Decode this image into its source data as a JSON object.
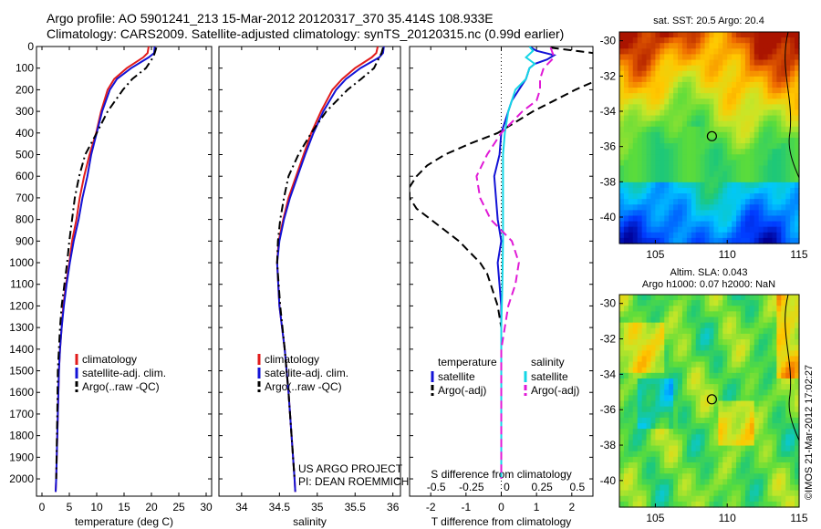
{
  "header": {
    "line1": "Argo profile: AO 5901241_213 15-Mar-2012 20120317_370 35.414S 108.933E",
    "line2": "Climatology: CARS2009. Satellite-adjusted climatology: synTS_20120315.nc (0.99d earlier)"
  },
  "colors": {
    "climatology": "#e11b1b",
    "satellite": "#1313d6",
    "argo": "#000000",
    "salinity_sat": "#14d6e6",
    "salinity_argo": "#e01ad6"
  },
  "chart_data": [
    {
      "type": "line",
      "id": "temperature",
      "xlabel": "temperature (deg C)",
      "ylabel": "",
      "xlim": [
        -1,
        31
      ],
      "ylim": [
        2080,
        0
      ],
      "xticks": [
        0,
        5,
        10,
        15,
        20,
        25,
        30
      ],
      "yticks": [
        0,
        100,
        200,
        300,
        400,
        500,
        600,
        700,
        800,
        900,
        1000,
        1100,
        1200,
        1300,
        1400,
        1500,
        1600,
        1700,
        1800,
        1900,
        2000
      ],
      "legend": [
        "climatology",
        "satellite-adj. clim.",
        "Argo(..raw -QC)"
      ],
      "legend_position": "lower-center",
      "series": [
        {
          "name": "climatology",
          "style": "solid",
          "depth": [
            0,
            30,
            50,
            100,
            150,
            200,
            300,
            400,
            500,
            600,
            700,
            800,
            900,
            1000,
            1100,
            1200,
            1300,
            1400,
            1500,
            1700,
            2000,
            2060
          ],
          "values": [
            19.5,
            19.3,
            18.5,
            15.5,
            13.2,
            12.0,
            10.8,
            9.9,
            8.7,
            7.7,
            6.9,
            6.3,
            5.5,
            5.0,
            4.4,
            3.9,
            3.6,
            3.3,
            3.1,
            2.9,
            2.6,
            2.5
          ]
        },
        {
          "name": "satellite-adj. clim.",
          "style": "solid",
          "depth": [
            0,
            30,
            50,
            100,
            150,
            200,
            300,
            400,
            500,
            600,
            700,
            800,
            900,
            1000,
            1100,
            1200,
            1300,
            1400,
            1500,
            1700,
            2000,
            2060
          ],
          "values": [
            20.6,
            20.5,
            19.5,
            16.3,
            13.7,
            12.4,
            11.0,
            10.0,
            9.0,
            8.3,
            7.4,
            6.7,
            5.8,
            5.1,
            4.5,
            4.0,
            3.6,
            3.3,
            3.1,
            2.9,
            2.6,
            2.5
          ]
        },
        {
          "name": "Argo(..raw -QC)",
          "style": "dashdot",
          "depth": [
            5,
            30,
            50,
            100,
            150,
            200,
            300,
            400,
            500,
            600,
            700,
            800,
            900,
            1000,
            1100,
            1200,
            1300,
            1400,
            1500,
            1700,
            2000
          ],
          "values": [
            20.9,
            20.6,
            20.3,
            19.0,
            16.5,
            14.8,
            12.0,
            10.0,
            7.9,
            6.8,
            6.0,
            5.5,
            5.0,
            4.6,
            4.1,
            3.6,
            3.3,
            3.1,
            2.9,
            2.8,
            2.6
          ]
        }
      ]
    },
    {
      "type": "line",
      "id": "salinity",
      "xlabel": "salinity",
      "ylabel": "",
      "xlim": [
        33.7,
        36.1
      ],
      "ylim": [
        2080,
        0
      ],
      "xticks": [
        34,
        34.5,
        35,
        35.5,
        36
      ],
      "legend": [
        "climatology",
        "satellite-adj. clim.",
        "Argo(..raw -QC)"
      ],
      "legend_position": "lower-center",
      "annotations": [
        "US ARGO PROJECT",
        "PI: DEAN ROEMMICH"
      ],
      "series": [
        {
          "name": "climatology",
          "style": "solid",
          "depth": [
            0,
            30,
            50,
            100,
            150,
            200,
            300,
            400,
            500,
            600,
            700,
            800,
            900,
            1000,
            1200,
            1400,
            1600,
            1800,
            2000,
            2060
          ],
          "values": [
            35.8,
            35.78,
            35.72,
            35.5,
            35.33,
            35.2,
            35.05,
            34.92,
            34.82,
            34.72,
            34.62,
            34.55,
            34.49,
            34.47,
            34.5,
            34.57,
            34.62,
            34.66,
            34.7,
            34.71
          ]
        },
        {
          "name": "satellite-adj. clim.",
          "style": "solid",
          "depth": [
            0,
            30,
            50,
            100,
            150,
            200,
            300,
            400,
            500,
            600,
            700,
            800,
            900,
            1000,
            1200,
            1400,
            1600,
            1800,
            2000,
            2060
          ],
          "values": [
            35.88,
            35.87,
            35.82,
            35.57,
            35.38,
            35.25,
            35.08,
            34.95,
            34.84,
            34.74,
            34.64,
            34.56,
            34.5,
            34.47,
            34.5,
            34.57,
            34.62,
            34.66,
            34.7,
            34.71
          ]
        },
        {
          "name": "Argo(..raw -QC)",
          "style": "dashdot",
          "depth": [
            5,
            30,
            50,
            100,
            150,
            200,
            300,
            400,
            500,
            600,
            700,
            800,
            900,
            1000,
            1200,
            1400,
            1600,
            1800,
            2000
          ],
          "values": [
            35.87,
            35.85,
            35.82,
            35.75,
            35.58,
            35.4,
            35.12,
            34.92,
            34.75,
            34.62,
            34.56,
            34.51,
            34.48,
            34.47,
            34.51,
            34.57,
            34.62,
            34.66,
            34.7
          ]
        }
      ]
    },
    {
      "type": "line",
      "id": "difference",
      "xlabel": "T difference from climatology",
      "xlabel_top": "S difference from climatology",
      "xlim": [
        -2.6,
        2.6
      ],
      "ylim": [
        2080,
        0
      ],
      "xticks": [
        -2,
        -1,
        0,
        1,
        2
      ],
      "xtick_labels_s": [
        "-0.5",
        "-0.25",
        "0",
        "0.25",
        "0.5"
      ],
      "xticks_s_pos": [
        -2,
        -1,
        0,
        1,
        2
      ],
      "legend": {
        "temperature_title": "temperature",
        "salinity_title": "salinity",
        "items": [
          "satellite",
          "Argo(-adj)",
          "satellite",
          "Argo(-adj)"
        ]
      },
      "legend_position": "lower-center",
      "series": [
        {
          "name": "satellite",
          "group": "temperature",
          "style": "solid",
          "depth": [
            0,
            20,
            40,
            60,
            80,
            100,
            150,
            200,
            250,
            300,
            350,
            400,
            500,
            600,
            700,
            800,
            900,
            1000,
            1200,
            1400,
            1600,
            1800,
            2000
          ],
          "values": [
            0.8,
            1.0,
            1.5,
            1.3,
            0.95,
            0.8,
            0.7,
            0.5,
            0.3,
            0.2,
            0.1,
            0.0,
            -0.05,
            -0.2,
            -0.15,
            -0.1,
            0.0,
            -0.1,
            0.0,
            0.0,
            0.0,
            0.0,
            0.0
          ]
        },
        {
          "name": "Argo(-adj)",
          "group": "temperature",
          "style": "dashed",
          "depth": [
            5,
            30,
            50,
            80,
            100,
            150,
            200,
            250,
            300,
            350,
            400,
            450,
            500,
            550,
            600,
            650,
            700,
            750,
            800,
            850,
            900,
            950,
            1000,
            1050,
            1100,
            1200,
            1300,
            1500,
            2000
          ],
          "values": [
            1.4,
            2.6,
            4.0,
            4.0,
            3.5,
            2.8,
            2.1,
            1.5,
            0.9,
            0.4,
            -0.1,
            -0.9,
            -1.6,
            -2.1,
            -2.4,
            -2.6,
            -2.6,
            -2.4,
            -2.0,
            -1.6,
            -1.2,
            -0.9,
            -0.6,
            -0.4,
            -0.3,
            -0.1,
            0.0,
            0.0,
            0.0
          ]
        },
        {
          "name": "satellite",
          "group": "salinity",
          "style": "solid",
          "depth": [
            0,
            20,
            50,
            80,
            100,
            150,
            200,
            300,
            400,
            500,
            700,
            900,
            1100,
            1300,
            1600,
            2000
          ],
          "values": [
            0.8,
            0.9,
            0.7,
            0.95,
            0.8,
            0.7,
            0.4,
            0.2,
            0.1,
            0.05,
            0.05,
            0.05,
            0.03,
            0.0,
            0.0,
            0.0
          ]
        },
        {
          "name": "Argo(-adj)",
          "group": "salinity",
          "style": "dashed",
          "depth": [
            5,
            50,
            100,
            150,
            200,
            250,
            300,
            350,
            400,
            500,
            600,
            700,
            800,
            900,
            1000,
            1100,
            1200,
            1400,
            2000
          ],
          "values": [
            1.4,
            1.5,
            1.2,
            1.1,
            1.1,
            1.0,
            0.6,
            0.3,
            0.0,
            -0.4,
            -0.7,
            -0.6,
            -0.3,
            0.3,
            0.5,
            0.4,
            0.2,
            0.0,
            0.0
          ]
        }
      ]
    },
    {
      "type": "heatmap",
      "id": "sst_map",
      "title": "sat. SST: 20.5  Argo: 20.4",
      "xlim": [
        102.5,
        115
      ],
      "ylim": [
        -41.5,
        -29.5
      ],
      "xticks": [
        105,
        110,
        115
      ],
      "yticks": [
        -30,
        -32,
        -34,
        -36,
        -38,
        -40
      ],
      "marker": {
        "lon": 108.933,
        "lat": -35.414
      }
    },
    {
      "type": "heatmap",
      "id": "sla_map",
      "title": "Altim. SLA: 0.043",
      "subtitle": "Argo h1000: 0.07 h2000: NaN",
      "xlim": [
        102.5,
        115
      ],
      "ylim": [
        -41.5,
        -29.5
      ],
      "xticks": [
        105,
        110,
        115
      ],
      "yticks": [
        -30,
        -32,
        -34,
        -36,
        -38,
        -40
      ],
      "marker": {
        "lon": 108.933,
        "lat": -35.414
      }
    }
  ],
  "credit": "©IMOS 21-Mar-2012 17:02:27"
}
